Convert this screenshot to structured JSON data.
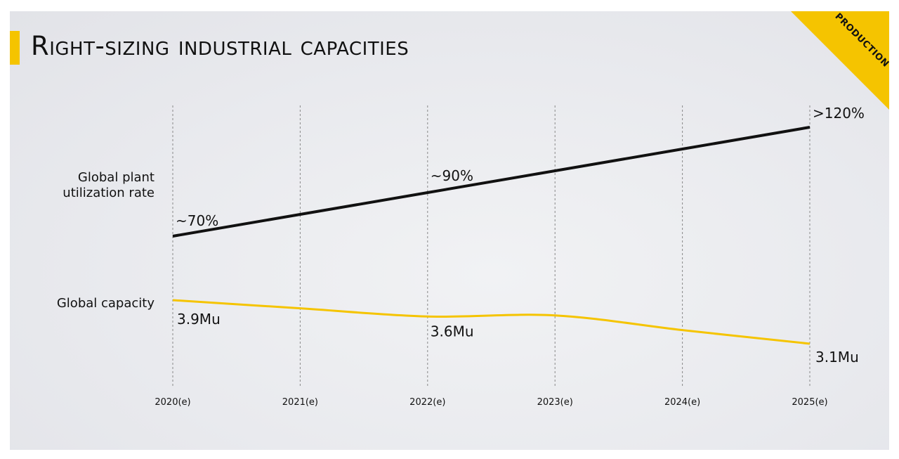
{
  "title": "Right-sizing industrial capacities",
  "corner_label": "PRODUCTION",
  "colors": {
    "accent": "#f5c400",
    "utilization_line": "#111111",
    "capacity_line": "#f5c400",
    "grid": "#888888",
    "background": "#e9eaee"
  },
  "chart_data": {
    "type": "line",
    "title": "Right-sizing industrial capacities",
    "categories": [
      "2020(e)",
      "2021(e)",
      "2022(e)",
      "2023(e)",
      "2024(e)",
      "2025(e)"
    ],
    "grid": "vertical dashed",
    "series": [
      {
        "name": "Global plant utilization rate",
        "label_lines": [
          "Global plant",
          "utilization rate"
        ],
        "unit": "%",
        "values": [
          70,
          80,
          90,
          100,
          110,
          120
        ],
        "data_labels": [
          {
            "index": 0,
            "text": "~70%"
          },
          {
            "index": 2,
            "text": "~90%"
          },
          {
            "index": 5,
            "text": ">120%"
          }
        ]
      },
      {
        "name": "Global capacity",
        "label_lines": [
          "Global capacity"
        ],
        "unit": "Mu",
        "values": [
          3.9,
          3.75,
          3.6,
          3.62,
          3.35,
          3.1
        ],
        "data_labels": [
          {
            "index": 0,
            "text": "3.9Mu"
          },
          {
            "index": 2,
            "text": "3.6Mu"
          },
          {
            "index": 5,
            "text": "3.1Mu"
          }
        ]
      }
    ]
  }
}
